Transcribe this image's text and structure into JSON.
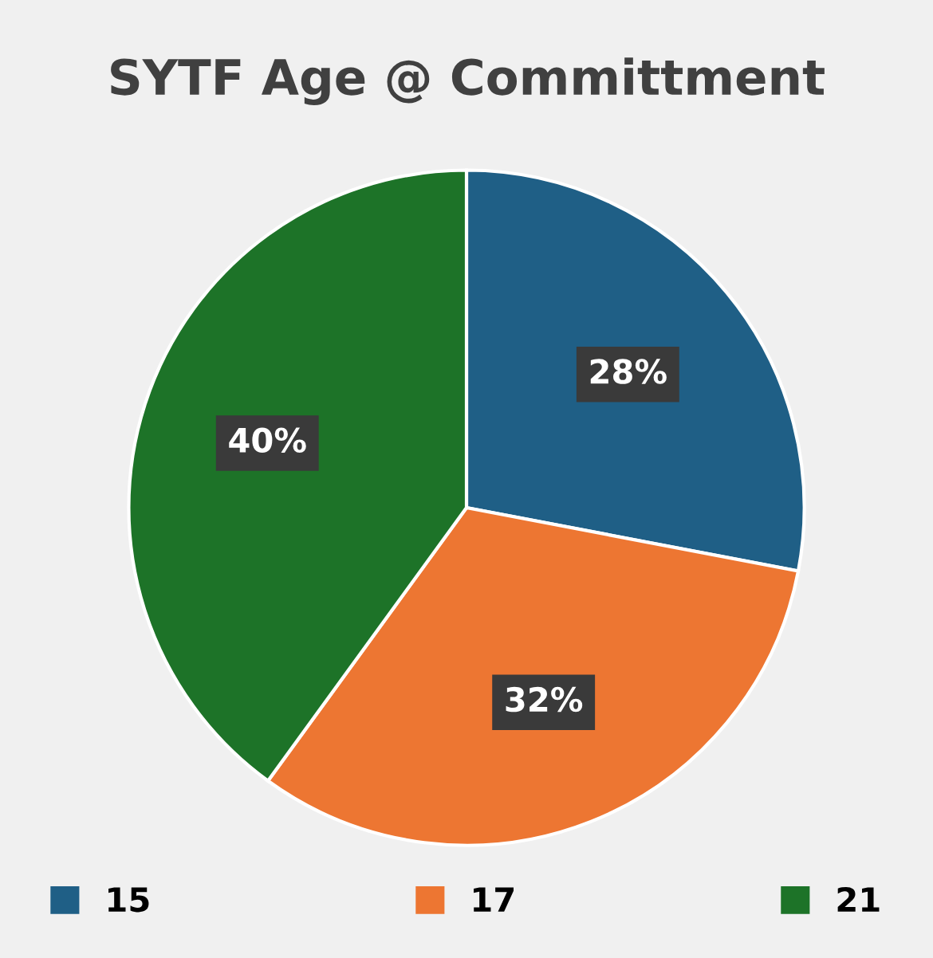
{
  "chart_data": {
    "type": "pie",
    "title": "SYTF Age @ Committment",
    "categories": [
      "15",
      "17",
      "21"
    ],
    "values": [
      28,
      32,
      40
    ],
    "colors": [
      "#1f5f86",
      "#ed7632",
      "#1d7328"
    ],
    "value_labels": [
      "28%",
      "32%",
      "40%"
    ],
    "legend": "bottom"
  }
}
